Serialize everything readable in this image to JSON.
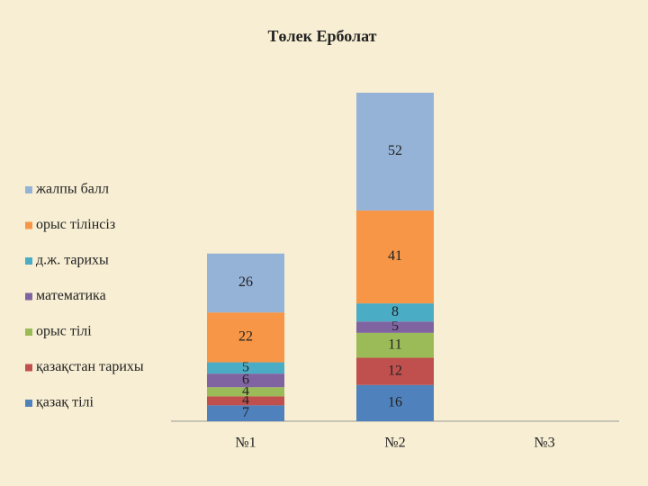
{
  "chart_data": {
    "type": "stacked_bar",
    "title": "Төлек Ерболат",
    "categories": [
      "№1",
      "№2",
      "№3"
    ],
    "series": [
      {
        "name": "қазақ тілі",
        "color": "#4f81bd",
        "values": [
          7,
          16,
          null
        ]
      },
      {
        "name": "қазақстан тарихы",
        "color": "#c0504d",
        "values": [
          4,
          12,
          null
        ]
      },
      {
        "name": "орыс тілі",
        "color": "#9bbb59",
        "values": [
          4,
          11,
          null
        ]
      },
      {
        "name": "математика",
        "color": "#8064a2",
        "values": [
          6,
          5,
          null
        ]
      },
      {
        "name": "д.ж. тарихы",
        "color": "#4bacc6",
        "values": [
          5,
          8,
          null
        ]
      },
      {
        "name": "орыс тілінсіз",
        "color": "#f79646",
        "values": [
          22,
          41,
          null
        ]
      },
      {
        "name": "жалпы балл",
        "color": "#95b3d7",
        "values": [
          26,
          52,
          null
        ]
      }
    ],
    "legend": "left"
  }
}
